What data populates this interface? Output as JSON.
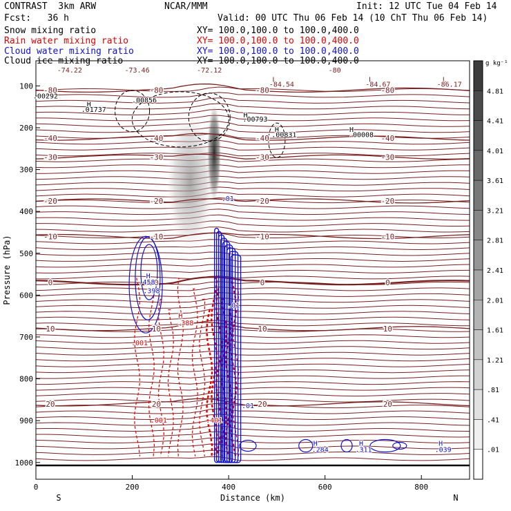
{
  "header": {
    "model": "CONTRAST  3km ARW",
    "org": "NCAR/MMM",
    "init": "Init: 12 UTC Tue 04 Feb 14",
    "fcst": "Fcst:   36 h",
    "valid": "Valid: 00 UTC Thu 06 Feb 14 (10 ChT Thu 06 Feb 14)",
    "fields": [
      {
        "name": "Snow mixing ratio",
        "xy": "XY= 100.0,100.0 to 100.0,400.0",
        "color": "#000000"
      },
      {
        "name": "Rain water mixing ratio",
        "xy": "XY= 100.0,100.0 to 100.0,400.0",
        "color": "#e00000"
      },
      {
        "name": "Cloud water mixing ratio",
        "xy": "XY= 100.0,100.0 to 100.0,400.0",
        "color": "#1010d0"
      },
      {
        "name": "Cloud ice mixing ratio",
        "xy": "XY= 100.0,100.0 to 100.0,400.0",
        "color": "#000000"
      }
    ]
  },
  "chart_data": {
    "type": "cross-section contour",
    "xlabel": "Distance (km)",
    "ylabel": "Pressure (hPa)",
    "x_ticks": [
      0,
      200,
      400,
      600,
      800
    ],
    "xlim": [
      0,
      900
    ],
    "y_ticks": [
      100,
      200,
      300,
      400,
      500,
      600,
      700,
      800,
      900,
      1000
    ],
    "ylim": [
      40,
      1040
    ],
    "x_end_labels": {
      "left": "S",
      "right": "N"
    },
    "colorbar": {
      "unit": "g kg⁻¹",
      "labels": [
        "4.81",
        "4.41",
        "4.01",
        "3.61",
        "3.21",
        "2.81",
        "2.41",
        "2.01",
        "1.61",
        "1.21",
        ".81",
        ".41",
        ".01"
      ]
    },
    "temperature_contours": [
      {
        "label": "-80",
        "p": 110
      },
      {
        "label": "-40",
        "p": 225
      },
      {
        "label": "-30",
        "p": 270
      },
      {
        "label": "-20",
        "p": 375
      },
      {
        "label": "-10",
        "p": 460
      },
      {
        "label": "0",
        "p": 570
      },
      {
        "label": "10",
        "p": 680
      },
      {
        "label": "20",
        "p": 860
      }
    ],
    "annotations": [
      {
        "text": "-74.22",
        "x": 70,
        "p": 68
      },
      {
        "text": "-73.46",
        "x": 210,
        "p": 68
      },
      {
        "text": "-72.12",
        "x": 360,
        "p": 68
      },
      {
        "text": "-80",
        "x": 620,
        "p": 68
      },
      {
        "text": "L",
        "x": 495,
        "p": 90
      },
      {
        "text": "-84.54",
        "x": 510,
        "p": 102
      },
      {
        "text": "L",
        "x": 695,
        "p": 90
      },
      {
        "text": "-84.67",
        "x": 710,
        "p": 102
      },
      {
        "text": "L",
        "x": 848,
        "p": 90
      },
      {
        "text": "-86.17",
        "x": 858,
        "p": 102
      },
      {
        "text": ".00292",
        "x": 20,
        "p": 130
      },
      {
        "text": ".00856",
        "x": 225,
        "p": 140
      },
      {
        "text": "H",
        "x": 110,
        "p": 150
      },
      {
        "text": ".01737",
        "x": 120,
        "p": 162
      },
      {
        "text": "H",
        "x": 435,
        "p": 175
      },
      {
        "text": ".00793",
        "x": 455,
        "p": 185
      },
      {
        "text": "H",
        "x": 500,
        "p": 210
      },
      {
        "text": ".00831",
        "x": 515,
        "p": 222
      },
      {
        "text": "H",
        "x": 655,
        "p": 210
      },
      {
        "text": ".00008",
        "x": 675,
        "p": 222
      },
      {
        "text": "H",
        "x": 233,
        "p": 560
      },
      {
        "text": ".458",
        "x": 230,
        "p": 575
      },
      {
        "text": ".398",
        "x": 240,
        "p": 595
      },
      {
        "text": "H",
        "x": 300,
        "p": 655
      },
      {
        "text": ".388",
        "x": 310,
        "p": 672
      },
      {
        "text": ".001",
        "x": 215,
        "p": 720
      },
      {
        "text": ".001",
        "x": 255,
        "p": 905
      },
      {
        "text": ".401",
        "x": 370,
        "p": 905
      },
      {
        "text": ".01",
        "x": 398,
        "p": 375
      },
      {
        "text": ".01",
        "x": 410,
        "p": 630
      },
      {
        "text": ".01",
        "x": 440,
        "p": 870
      },
      {
        "text": "H",
        "x": 580,
        "p": 960
      },
      {
        "text": ".284",
        "x": 590,
        "p": 975
      },
      {
        "text": "H",
        "x": 675,
        "p": 960
      },
      {
        "text": ".311",
        "x": 680,
        "p": 975
      },
      {
        "text": "H",
        "x": 840,
        "p": 960
      },
      {
        "text": ".039",
        "x": 845,
        "p": 975
      }
    ]
  }
}
